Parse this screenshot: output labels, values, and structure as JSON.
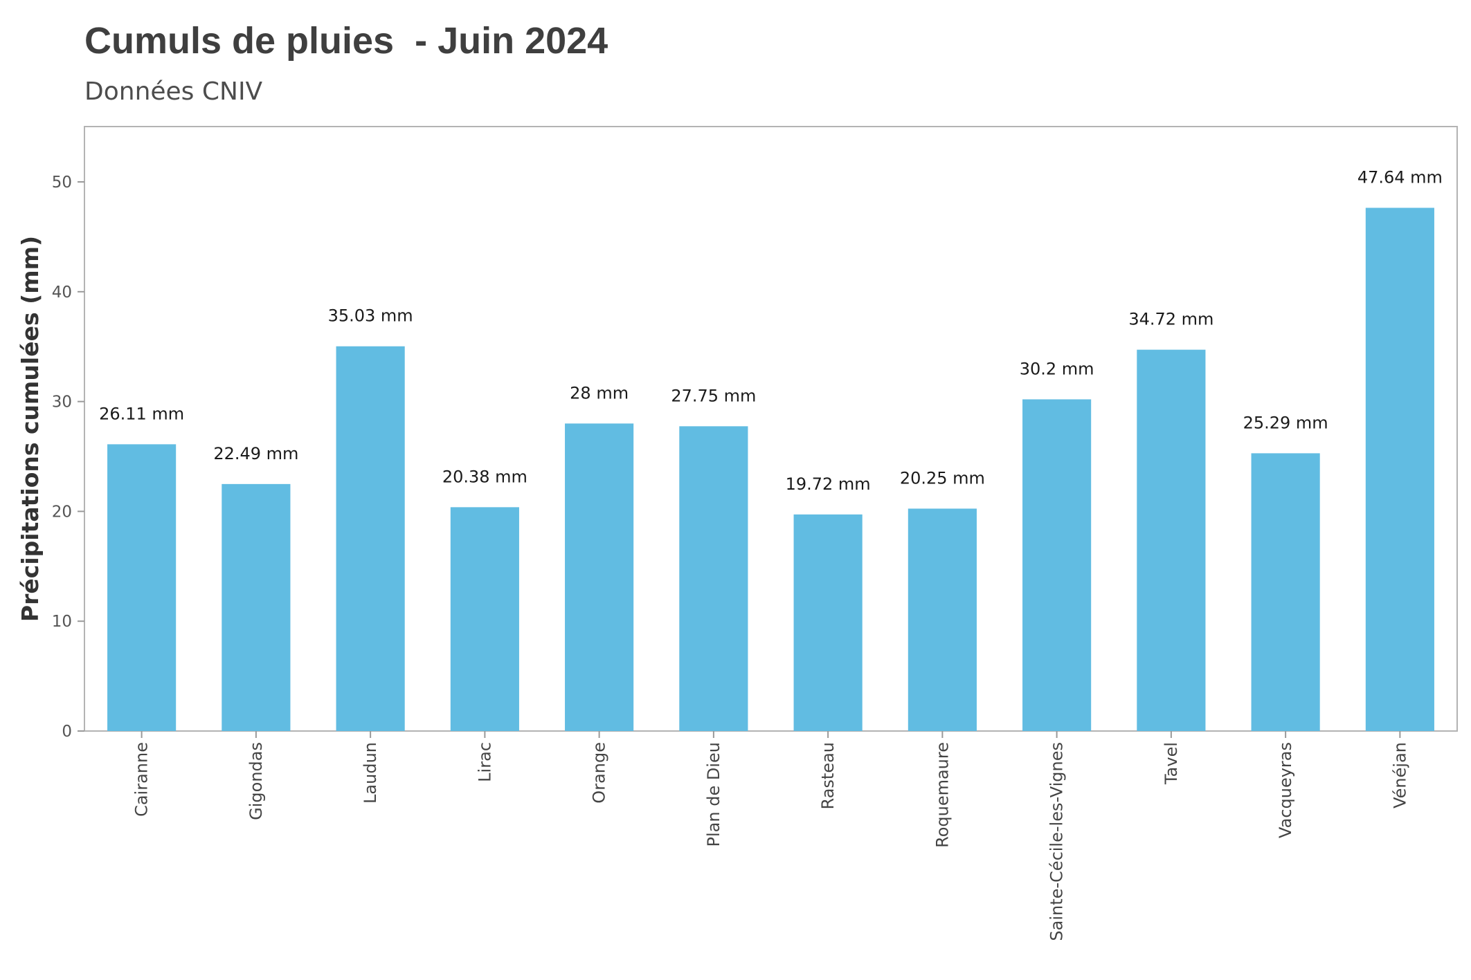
{
  "chart_data": {
    "type": "bar",
    "title": "Cumuls de pluies  - Juin 2024",
    "subtitle": "Données CNIV",
    "xlabel": "",
    "ylabel": "Précipitations cumulées (mm)",
    "ylim": [
      0,
      55
    ],
    "yticks": [
      0,
      10,
      20,
      30,
      40,
      50
    ],
    "grid": false,
    "legend": "none",
    "bar_color": "#61bce2",
    "categories": [
      "Cairanne",
      "Gigondas",
      "Laudun",
      "Lirac",
      "Orange",
      "Plan de Dieu",
      "Rasteau",
      "Roquemaure",
      "Sainte-Cécile-les-Vignes",
      "Tavel",
      "Vacqueyras",
      "Vénéjan"
    ],
    "values": [
      26.11,
      22.49,
      35.03,
      20.38,
      28,
      27.75,
      19.72,
      20.25,
      30.2,
      34.72,
      25.29,
      47.64
    ],
    "data_labels": [
      "26.11 mm",
      "22.49 mm",
      "35.03 mm",
      "20.38 mm",
      "28 mm",
      "27.75 mm",
      "19.72 mm",
      "20.25 mm",
      "30.2 mm",
      "34.72 mm",
      "25.29 mm",
      "47.64 mm"
    ]
  }
}
